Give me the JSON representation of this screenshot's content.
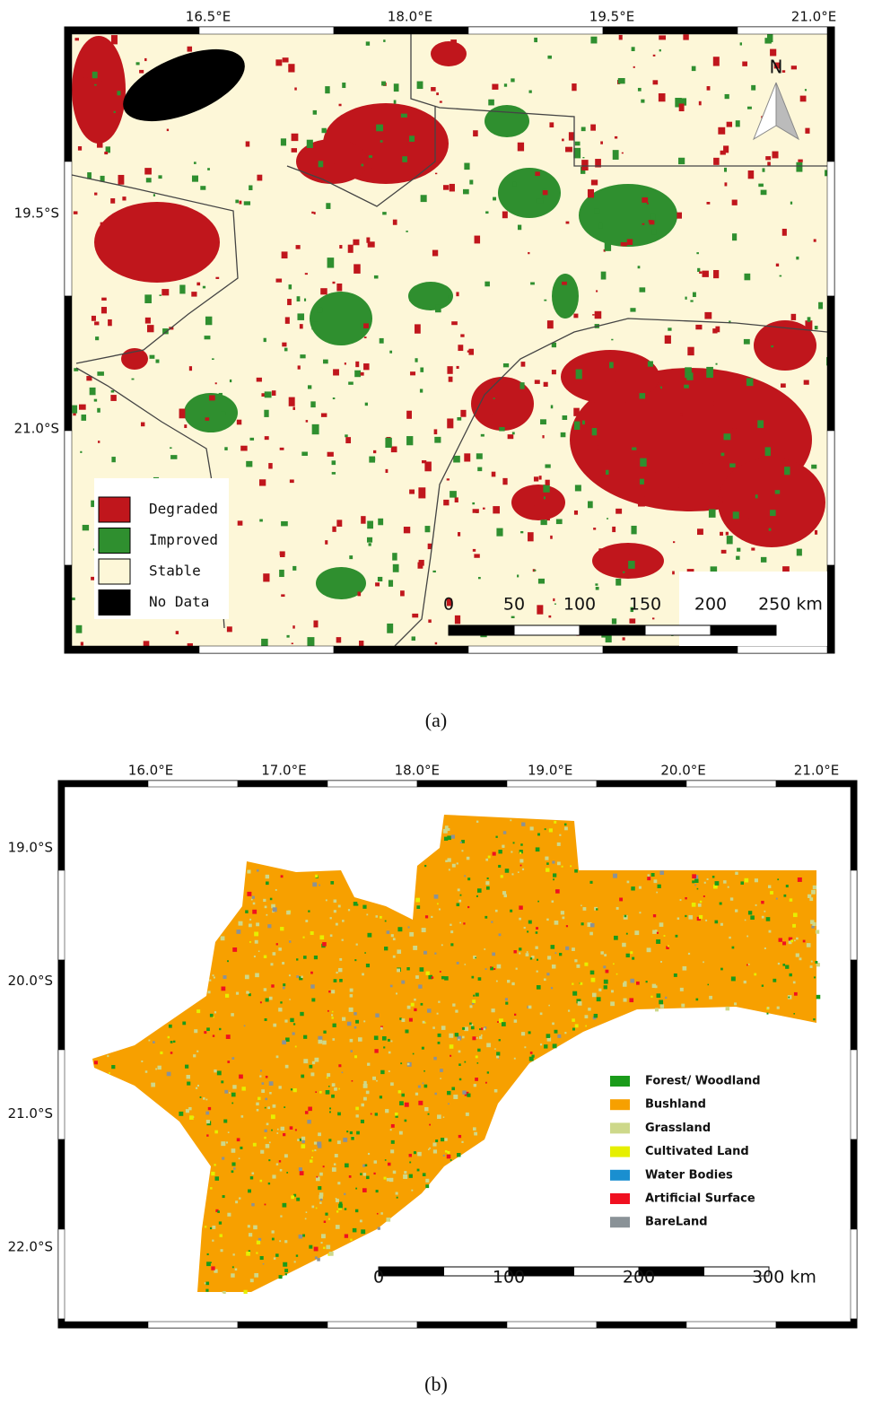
{
  "panels": [
    {
      "label": "(a)",
      "lon_labels": [
        "16.5°E",
        "18.0°E",
        "19.5°E",
        "21.0°E"
      ],
      "lat_labels": [
        "19.5°S",
        "21.0°S"
      ],
      "north": "N",
      "legend": [
        {
          "name": "Degraded",
          "color": "#c0161c"
        },
        {
          "name": "Improved",
          "color": "#2f8f2f"
        },
        {
          "name": "Stable",
          "color": "#fdf7d8"
        },
        {
          "name": "No Data",
          "color": "#000000"
        }
      ],
      "scale_labels": [
        "0",
        "50",
        "100",
        "150",
        "200",
        "250 km"
      ]
    },
    {
      "label": "(b)",
      "lon_labels": [
        "16.0°E",
        "17.0°E",
        "18.0°E",
        "19.0°E",
        "20.0°E",
        "21.0°E"
      ],
      "lat_labels": [
        "19.0°S",
        "20.0°S",
        "21.0°S",
        "22.0°S"
      ],
      "legend": [
        {
          "name": "Forest/ Woodland",
          "color": "#1a9b1a"
        },
        {
          "name": "Bushland",
          "color": "#f7a000"
        },
        {
          "name": "Grassland",
          "color": "#cdd88a"
        },
        {
          "name": "Cultivated Land",
          "color": "#e6ef00"
        },
        {
          "name": "Water Bodies",
          "color": "#1a8fd0"
        },
        {
          "name": "Artificial Surface",
          "color": "#f01020"
        },
        {
          "name": "BareLand",
          "color": "#8a9297"
        }
      ],
      "scale_labels": [
        "0",
        "100",
        "200",
        "300 km"
      ]
    }
  ]
}
